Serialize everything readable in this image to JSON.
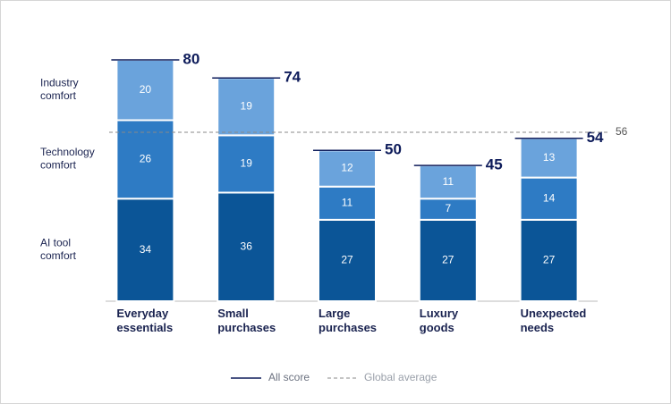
{
  "chart_data": {
    "type": "stacked_bar",
    "categories": [
      "Everyday essentials",
      "Small purchases",
      "Large purchases",
      "Luxury goods",
      "Unexpected needs"
    ],
    "series": [
      {
        "name": "AI tool comfort",
        "color": "#0b5597",
        "values": [
          34,
          36,
          27,
          27,
          27
        ]
      },
      {
        "name": "Technology comfort",
        "color": "#2e7bc4",
        "values": [
          26,
          19,
          11,
          7,
          14
        ]
      },
      {
        "name": "Industry comfort",
        "color": "#6aa3dc",
        "values": [
          20,
          19,
          12,
          11,
          13
        ]
      }
    ],
    "all_score": {
      "name": "All score",
      "color": "#0d1b5a",
      "values": [
        80,
        74,
        50,
        45,
        54
      ]
    },
    "global_average": {
      "name": "Global average",
      "color": "#888888",
      "value": 56
    },
    "ylim": [
      0,
      80
    ]
  }
}
